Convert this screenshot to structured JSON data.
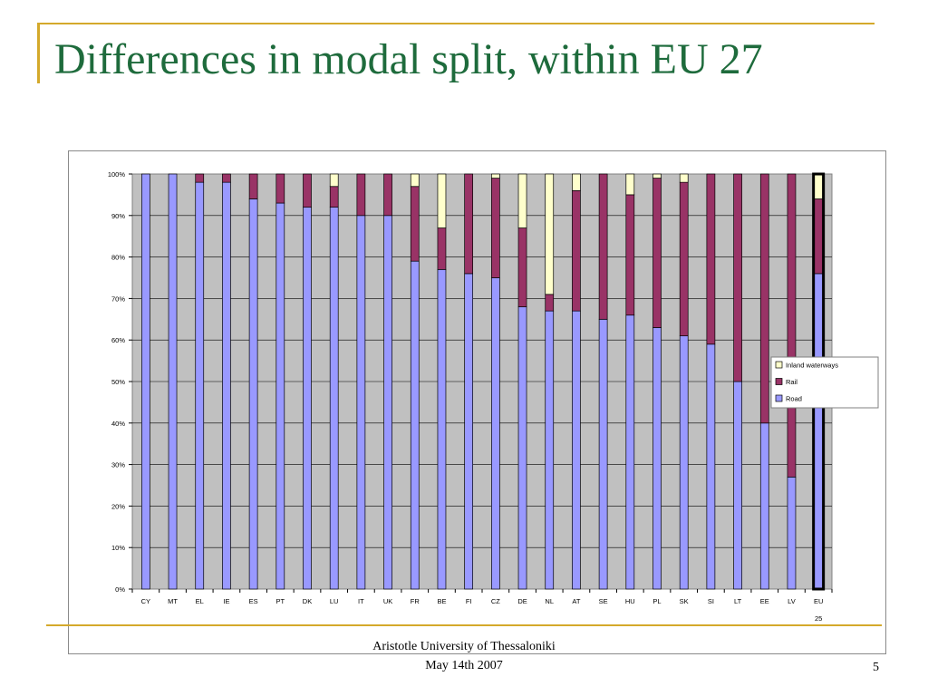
{
  "slide": {
    "title": "Differences in modal split, within EU 27",
    "footer_line1": "Aristotle University of Thessaloniki",
    "footer_line2": "May 14th 2007",
    "page_number": "5"
  },
  "colors": {
    "accent": "#d4a92b",
    "title": "#1e6b3c",
    "road": "#9999ff",
    "rail": "#993366",
    "inland_waterways": "#ffffcc",
    "plot_bg": "#c0c0c0"
  },
  "chart_data": {
    "type": "bar",
    "stacked": true,
    "title": "",
    "xlabel": "",
    "ylabel": "",
    "ylim": [
      0,
      100
    ],
    "y_ticks": [
      "0%",
      "10%",
      "20%",
      "30%",
      "40%",
      "50%",
      "60%",
      "70%",
      "80%",
      "90%",
      "100%"
    ],
    "categories": [
      "CY",
      "MT",
      "EL",
      "IE",
      "ES",
      "PT",
      "DK",
      "LU",
      "IT",
      "UK",
      "FR",
      "BE",
      "FI",
      "CZ",
      "DE",
      "NL",
      "AT",
      "SE",
      "HU",
      "PL",
      "SK",
      "SI",
      "LT",
      "EE",
      "LV",
      "EU"
    ],
    "category_sublabels": {
      "EU": "25"
    },
    "highlighted_category": "EU",
    "series": [
      {
        "name": "Road",
        "color": "#9999ff",
        "values": [
          100,
          100,
          98,
          98,
          94,
          93,
          92,
          92,
          90,
          90,
          79,
          77,
          76,
          75,
          68,
          67,
          67,
          65,
          66,
          63,
          61,
          59,
          50,
          40,
          27,
          76
        ]
      },
      {
        "name": "Rail",
        "color": "#993366",
        "values": [
          0,
          0,
          2,
          2,
          6,
          7,
          8,
          5,
          10,
          10,
          18,
          10,
          24,
          24,
          19,
          4,
          29,
          35,
          29,
          36,
          37,
          41,
          50,
          60,
          73,
          18
        ]
      },
      {
        "name": "Inland waterways",
        "color": "#ffffcc",
        "values": [
          0,
          0,
          0,
          0,
          0,
          0,
          0,
          3,
          0,
          0,
          3,
          13,
          0,
          1,
          13,
          29,
          4,
          0,
          5,
          1,
          2,
          0,
          0,
          0,
          0,
          6
        ]
      }
    ],
    "legend_order": [
      "Inland waterways",
      "Rail",
      "Road"
    ],
    "legend_position": "right",
    "grid": true
  }
}
